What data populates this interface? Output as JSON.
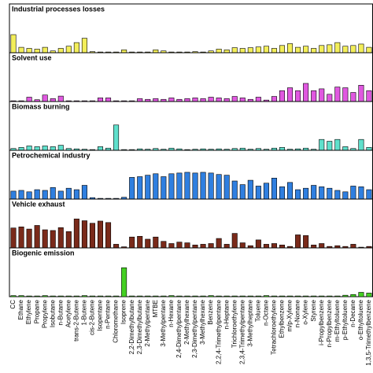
{
  "chart_data": [
    {
      "type": "bar",
      "title": "Industrial processes losses",
      "color": "#f3ee5a",
      "ylim": [
        0,
        100
      ],
      "values": [
        50,
        15,
        12,
        10,
        15,
        5,
        12,
        18,
        28,
        40,
        3,
        2,
        2,
        2,
        8,
        2,
        2,
        2,
        8,
        5,
        2,
        2,
        2,
        3,
        2,
        5,
        10,
        8,
        14,
        12,
        14,
        16,
        18,
        12,
        20,
        25,
        15,
        18,
        12,
        20,
        22,
        28,
        18,
        20,
        24,
        15
      ]
    },
    {
      "type": "bar",
      "title": "Solvent use",
      "color": "#e058e0",
      "ylim": [
        0,
        100
      ],
      "values": [
        2,
        2,
        12,
        5,
        18,
        8,
        15,
        2,
        2,
        2,
        2,
        10,
        10,
        2,
        2,
        2,
        8,
        6,
        8,
        6,
        10,
        6,
        8,
        10,
        8,
        12,
        10,
        8,
        14,
        10,
        6,
        12,
        4,
        14,
        30,
        38,
        30,
        50,
        30,
        35,
        20,
        40,
        38,
        25,
        45,
        30
      ]
    },
    {
      "type": "bar",
      "title": "Biomass burning",
      "color": "#5fe0cc",
      "ylim": [
        0,
        100
      ],
      "values": [
        5,
        8,
        12,
        10,
        12,
        10,
        14,
        5,
        4,
        3,
        2,
        10,
        6,
        70,
        2,
        2,
        4,
        3,
        5,
        3,
        6,
        4,
        2,
        3,
        4,
        3,
        4,
        3,
        5,
        6,
        3,
        5,
        3,
        6,
        8,
        3,
        4,
        6,
        3,
        30,
        25,
        30,
        10,
        5,
        30,
        8
      ]
    },
    {
      "type": "bar",
      "title": "Petrochemical industry",
      "color": "#2f7fe0",
      "ylim": [
        0,
        100
      ],
      "values": [
        22,
        24,
        20,
        26,
        24,
        32,
        22,
        30,
        26,
        38,
        4,
        2,
        2,
        2,
        5,
        60,
        62,
        66,
        70,
        62,
        70,
        72,
        74,
        72,
        74,
        72,
        68,
        66,
        50,
        40,
        52,
        36,
        44,
        58,
        34,
        46,
        26,
        30,
        38,
        34,
        30,
        24,
        20,
        36,
        34,
        26
      ]
    },
    {
      "type": "bar",
      "title": "Vehicle exhaust",
      "color": "#7a2a1a",
      "ylim": [
        0,
        100
      ],
      "values": [
        55,
        58,
        52,
        62,
        50,
        48,
        56,
        45,
        80,
        75,
        68,
        74,
        70,
        10,
        3,
        30,
        32,
        24,
        30,
        18,
        12,
        16,
        14,
        8,
        10,
        12,
        26,
        10,
        40,
        14,
        6,
        22,
        10,
        12,
        8,
        4,
        36,
        34,
        8,
        12,
        4,
        6,
        4,
        10,
        2,
        4
      ]
    },
    {
      "type": "bar",
      "title": "Biogenic emission",
      "color": "#44d022",
      "ylim": [
        0,
        100
      ],
      "values": [
        3,
        3,
        2,
        2,
        3,
        2,
        2,
        2,
        2,
        3,
        2,
        2,
        2,
        2,
        80,
        2,
        2,
        2,
        2,
        2,
        3,
        2,
        2,
        2,
        2,
        3,
        2,
        2,
        2,
        2,
        2,
        2,
        3,
        2,
        2,
        2,
        2,
        2,
        2,
        2,
        2,
        2,
        4,
        6,
        12,
        10
      ],
      "categories": [
        "CC",
        "Ethane",
        "Ethylene",
        "Propane",
        "Propylene",
        "Isobutane",
        "n-Butane",
        "Acetylene",
        "trans-2-Butene",
        "1-Butene",
        "cis-2-Butene",
        "Isopentane",
        "n-Pentane",
        "Chloromethane",
        "Isoprene",
        "2,2-Dimethylbutane",
        "2,3-Dimethylbutane",
        "2-Methylpentane",
        "MTBE",
        "3-Methylpentane",
        "n-Hexane",
        "2,4-Dimethylpentane",
        "2-Methylhexane",
        "2,3-Dimethylpentane",
        "3-Methylhexane",
        "Benzene",
        "2,2,4-Trimethylpentane",
        "n-Heptane",
        "Trichloroethylene",
        "2,3,4-Trimethylpentane",
        "3-Methylheptane",
        "Toluene",
        "n-Octane",
        "Tetrachloroethylene",
        "Ethylbenzene",
        "m/p-Xylene",
        "n-Nonane",
        "o-Xylene",
        "Styrene",
        "i-Propylbenzene",
        "n-Propylbenzene",
        "m-Ethyltoluene",
        "p-Ethyltoluene",
        "n-Decane",
        "o-Ethyltoluene",
        "1,3,5-Trimethylbenzene"
      ]
    }
  ]
}
